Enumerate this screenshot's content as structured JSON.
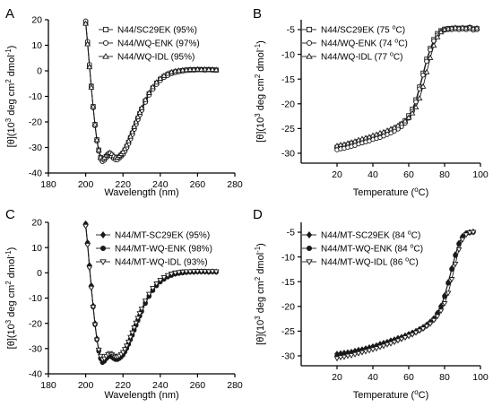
{
  "figure": {
    "colors": {
      "axis": "#000000",
      "marker": "#1a1a1a"
    }
  },
  "chart_data": [
    {
      "panel": "A",
      "type": "scatter",
      "xlabel": "Wavelength (nm)",
      "ylabel_parts": [
        "[θ](10",
        "3",
        " deg cm",
        "2",
        " dmol",
        "-1",
        ")"
      ],
      "xlim": [
        180,
        280
      ],
      "ylim": [
        -40,
        20
      ],
      "xticks": [
        180,
        200,
        220,
        240,
        260,
        280
      ],
      "yticks": [
        -40,
        -30,
        -20,
        -10,
        0,
        10,
        20
      ],
      "grid": false,
      "legend": {
        "position": "top-right"
      },
      "x": [
        200,
        201,
        202,
        203,
        204,
        205,
        206,
        207,
        208,
        209,
        210,
        211,
        212,
        213,
        214,
        215,
        216,
        217,
        218,
        219,
        220,
        221,
        222,
        223,
        224,
        225,
        226,
        227,
        228,
        229,
        230,
        232,
        234,
        236,
        238,
        240,
        242,
        244,
        246,
        248,
        250,
        252,
        254,
        256,
        258,
        260,
        262,
        264,
        266,
        268,
        270
      ],
      "series": [
        {
          "name": "N44/SC29EK (95%)",
          "marker": "square-open",
          "values": [
            19,
            11,
            2,
            -6,
            -14,
            -21,
            -27,
            -31,
            -34,
            -35,
            -34.5,
            -33.5,
            -32.8,
            -32.5,
            -33,
            -33.8,
            -34.3,
            -34.3,
            -33.7,
            -33,
            -32.2,
            -31,
            -29.6,
            -28,
            -26.2,
            -24.4,
            -22.4,
            -20.5,
            -18.6,
            -16.8,
            -15,
            -11.8,
            -9,
            -6.7,
            -4.8,
            -3.3,
            -2.2,
            -1.4,
            -0.8,
            -0.4,
            -0.1,
            0.1,
            0.3,
            0.4,
            0.4,
            0.5,
            0.5,
            0.4,
            0.5,
            0.4,
            0.3
          ]
        },
        {
          "name": "N44/WQ-ENK (97%)",
          "marker": "circle-open",
          "values": [
            19.5,
            11.5,
            2.5,
            -6,
            -14.5,
            -21.5,
            -27.5,
            -31.5,
            -34.5,
            -35.5,
            -35,
            -34,
            -33.3,
            -33,
            -33.5,
            -34.3,
            -34.8,
            -34.8,
            -34.2,
            -33.5,
            -32.7,
            -31.5,
            -30.1,
            -28.5,
            -26.7,
            -24.9,
            -22.9,
            -21,
            -19.1,
            -17.3,
            -15.5,
            -12.3,
            -9.5,
            -7.2,
            -5.3,
            -3.8,
            -2.6,
            -1.8,
            -1.1,
            -0.7,
            -0.4,
            -0.1,
            0.1,
            0.2,
            0.3,
            0.4,
            0.4,
            0.3,
            0.4,
            0.3,
            0.2
          ]
        },
        {
          "name": "N44/WQ-IDL (95%)",
          "marker": "triangle-open",
          "values": [
            18.5,
            10.5,
            1.5,
            -6.5,
            -14,
            -21,
            -27,
            -31,
            -33.8,
            -34.5,
            -34,
            -33,
            -32.3,
            -32,
            -32.5,
            -33.3,
            -33.8,
            -33.8,
            -33.2,
            -32.5,
            -31.7,
            -30.5,
            -29.1,
            -27.5,
            -25.7,
            -23.9,
            -21.9,
            -20,
            -18.1,
            -16.3,
            -14.5,
            -11.3,
            -8.6,
            -6.3,
            -4.5,
            -3,
            -1.9,
            -1.1,
            -0.5,
            -0.1,
            0.1,
            0.3,
            0.4,
            0.5,
            0.5,
            0.6,
            0.5,
            0.6,
            0.5,
            0.5,
            0.4
          ]
        }
      ]
    },
    {
      "panel": "B",
      "type": "scatter",
      "xlabel_parts": [
        "Temperature (",
        "o",
        "C)"
      ],
      "ylabel_parts": [
        "[θ](10",
        "3",
        " deg cm",
        "2",
        " dmol",
        "-1",
        ")"
      ],
      "xlim": [
        0,
        100
      ],
      "ylim": [
        -32,
        -3
      ],
      "xticks": [
        20,
        40,
        60,
        80,
        100
      ],
      "yticks": [
        -30,
        -25,
        -20,
        -15,
        -10,
        -5
      ],
      "grid": false,
      "legend": {
        "position": "top-left"
      },
      "x": [
        20,
        22,
        24,
        26,
        28,
        30,
        32,
        34,
        36,
        38,
        40,
        42,
        44,
        46,
        48,
        50,
        52,
        54,
        56,
        58,
        60,
        62,
        64,
        66,
        68,
        70,
        72,
        74,
        76,
        78,
        80,
        82,
        84,
        86,
        88,
        90,
        92,
        94,
        96,
        98
      ],
      "series": [
        {
          "name": "N44/SC29EK (75 ºC)",
          "name_parts": [
            "N44/SC29EK (75 ",
            "o",
            "C)"
          ],
          "marker": "square-open",
          "values": [
            -28.8,
            -28.6,
            -28.5,
            -28.3,
            -28.0,
            -27.9,
            -27.6,
            -27.5,
            -27.3,
            -27.0,
            -26.8,
            -26.6,
            -26.3,
            -26.1,
            -25.8,
            -25.5,
            -25.1,
            -24.7,
            -24.1,
            -23.4,
            -22.4,
            -21.1,
            -19.2,
            -16.6,
            -13.8,
            -11.0,
            -8.8,
            -7.0,
            -5.8,
            -5.2,
            -4.9,
            -4.8,
            -4.8,
            -4.7,
            -4.8,
            -4.7,
            -4.8,
            -4.6,
            -4.9,
            -4.8
          ]
        },
        {
          "name": "N44/WQ-ENK (74 ºC)",
          "name_parts": [
            "N44/WQ-ENK (74 ",
            "o",
            "C)"
          ],
          "marker": "circle-open",
          "values": [
            -29.3,
            -29.1,
            -29.0,
            -28.8,
            -28.6,
            -28.4,
            -28.1,
            -27.9,
            -27.7,
            -27.5,
            -27.2,
            -27.0,
            -26.8,
            -26.5,
            -26.2,
            -25.9,
            -25.5,
            -25.1,
            -24.6,
            -23.9,
            -22.9,
            -21.5,
            -19.6,
            -17.0,
            -14.2,
            -11.4,
            -9.1,
            -7.3,
            -6.1,
            -5.4,
            -5.1,
            -5.0,
            -5.0,
            -4.9,
            -5.0,
            -4.9,
            -5.0,
            -4.8,
            -5.1,
            -5.0
          ]
        },
        {
          "name": "N44/WQ-IDL (77 ºC)",
          "name_parts": [
            "N44/WQ-IDL (77 ",
            "o",
            "C)"
          ],
          "marker": "triangle-open",
          "values": [
            -28.5,
            -28.3,
            -28.2,
            -28.0,
            -27.8,
            -27.6,
            -27.3,
            -27.1,
            -26.9,
            -26.7,
            -26.4,
            -26.2,
            -25.9,
            -25.7,
            -25.4,
            -25.1,
            -24.8,
            -24.4,
            -24.0,
            -23.5,
            -22.8,
            -21.9,
            -20.7,
            -18.9,
            -16.5,
            -13.6,
            -10.7,
            -8.2,
            -6.5,
            -5.5,
            -5.0,
            -4.8,
            -4.7,
            -4.6,
            -4.7,
            -4.6,
            -4.7,
            -4.5,
            -4.8,
            -4.7
          ]
        }
      ]
    },
    {
      "panel": "C",
      "type": "scatter",
      "xlabel": "Wavelength (nm)",
      "ylabel_parts": [
        "[θ](10",
        "3",
        " deg cm",
        "2",
        " dmol",
        "-1",
        ")"
      ],
      "xlim": [
        180,
        280
      ],
      "ylim": [
        -40,
        20
      ],
      "xticks": [
        180,
        200,
        220,
        240,
        260,
        280
      ],
      "yticks": [
        -40,
        -30,
        -20,
        -10,
        0,
        10,
        20
      ],
      "grid": false,
      "legend": {
        "position": "top-right"
      },
      "x": [
        200,
        201,
        202,
        203,
        204,
        205,
        206,
        207,
        208,
        209,
        210,
        211,
        212,
        213,
        214,
        215,
        216,
        217,
        218,
        219,
        220,
        221,
        222,
        223,
        224,
        225,
        226,
        227,
        228,
        229,
        230,
        232,
        234,
        236,
        238,
        240,
        242,
        244,
        246,
        248,
        250,
        252,
        254,
        256,
        258,
        260,
        262,
        264,
        266,
        268,
        270
      ],
      "series": [
        {
          "name": "N44/MT-SC29EK (95%)",
          "marker": "diamond-filled",
          "values": [
            19.5,
            12,
            3,
            -5,
            -13,
            -20,
            -26,
            -30.5,
            -33.5,
            -35,
            -34.5,
            -33.5,
            -32.8,
            -32.4,
            -32.8,
            -33.4,
            -33.8,
            -33.8,
            -33.4,
            -32.8,
            -32,
            -30.8,
            -29.4,
            -27.8,
            -26,
            -24.2,
            -22.2,
            -20.3,
            -18.4,
            -16.6,
            -14.8,
            -11.6,
            -8.9,
            -6.6,
            -4.8,
            -3.3,
            -2.2,
            -1.4,
            -0.8,
            -0.3,
            0,
            0.2,
            0.3,
            0.4,
            0.4,
            0.5,
            0.5,
            0.5,
            0.4,
            0.5,
            0.4
          ]
        },
        {
          "name": "N44/MT-WQ-ENK (98%)",
          "marker": "circle-filled",
          "values": [
            19,
            11.5,
            2.5,
            -5.5,
            -13.5,
            -20.5,
            -26.5,
            -31,
            -34,
            -35.5,
            -35,
            -34,
            -33.3,
            -32.9,
            -33.3,
            -33.9,
            -34.3,
            -34.3,
            -33.9,
            -33.3,
            -32.5,
            -31.3,
            -29.9,
            -28.3,
            -26.5,
            -24.7,
            -22.7,
            -20.8,
            -18.9,
            -17.1,
            -15.3,
            -12.1,
            -9.3,
            -7,
            -5.1,
            -3.6,
            -2.5,
            -1.6,
            -1,
            -0.5,
            -0.2,
            0,
            0.2,
            0.3,
            0.3,
            0.4,
            0.4,
            0.4,
            0.3,
            0.4,
            0.3
          ]
        },
        {
          "name": "N44/MT-WQ-IDL (93%)",
          "marker": "triangle-down-open",
          "values": [
            18.5,
            11,
            2,
            -6,
            -13.5,
            -20.5,
            -26.5,
            -30.5,
            -33,
            -34.3,
            -34,
            -33,
            -32.3,
            -31.9,
            -32.3,
            -32.9,
            -33.3,
            -33.3,
            -32.9,
            -32.3,
            -31.5,
            -30.3,
            -28.9,
            -27.3,
            -25.5,
            -23.7,
            -21.7,
            -19.8,
            -17.9,
            -16.1,
            -14.3,
            -11.1,
            -8.4,
            -6.1,
            -4.3,
            -2.9,
            -1.8,
            -1,
            -0.4,
            0,
            0.2,
            0.4,
            0.5,
            0.5,
            0.6,
            0.6,
            0.6,
            0.6,
            0.5,
            0.6,
            0.5
          ]
        }
      ]
    },
    {
      "panel": "D",
      "type": "scatter",
      "xlabel_parts": [
        "Temperature (",
        "o",
        "C)"
      ],
      "ylabel_parts": [
        "[θ](10",
        "3",
        " deg cm",
        "2",
        " dmol",
        "-1",
        ")"
      ],
      "xlim": [
        0,
        100
      ],
      "ylim": [
        -32,
        -3
      ],
      "xticks": [
        20,
        40,
        60,
        80,
        100
      ],
      "yticks": [
        -30,
        -25,
        -20,
        -15,
        -10,
        -5
      ],
      "grid": false,
      "legend": {
        "position": "top-left"
      },
      "x": [
        20,
        22,
        24,
        26,
        28,
        30,
        32,
        34,
        36,
        38,
        40,
        42,
        44,
        46,
        48,
        50,
        52,
        54,
        56,
        58,
        60,
        62,
        64,
        66,
        68,
        70,
        72,
        74,
        76,
        78,
        80,
        82,
        84,
        86,
        88,
        90,
        92,
        94,
        96
      ],
      "series": [
        {
          "name": "N44/MT-SC29EK (84 ºC)",
          "name_parts": [
            "N44/MT-SC29EK (84 ",
            "o",
            "C)"
          ],
          "marker": "diamond-filled",
          "values": [
            -29.6,
            -29.5,
            -29.4,
            -29.3,
            -29.2,
            -29.0,
            -28.8,
            -28.7,
            -28.5,
            -28.3,
            -28.1,
            -27.9,
            -27.6,
            -27.4,
            -27.2,
            -26.9,
            -26.7,
            -26.4,
            -26.2,
            -25.9,
            -25.6,
            -25.3,
            -25.0,
            -24.6,
            -24.2,
            -23.7,
            -23.1,
            -22.4,
            -21.3,
            -19.9,
            -17.8,
            -15.1,
            -12.3,
            -9.5,
            -7.2,
            -5.8,
            -5.2,
            -5.0,
            -4.9
          ]
        },
        {
          "name": "N44/MT-WQ-ENK (84 ºC)",
          "name_parts": [
            "N44/MT-WQ-ENK (84 ",
            "o",
            "C)"
          ],
          "marker": "circle-filled",
          "values": [
            -30.0,
            -29.9,
            -29.8,
            -29.7,
            -29.5,
            -29.4,
            -29.2,
            -29.0,
            -28.8,
            -28.6,
            -28.4,
            -28.2,
            -28.0,
            -27.7,
            -27.5,
            -27.2,
            -27.0,
            -26.7,
            -26.4,
            -26.1,
            -25.8,
            -25.5,
            -25.2,
            -24.8,
            -24.4,
            -23.9,
            -23.3,
            -22.6,
            -21.5,
            -20.1,
            -18.0,
            -15.3,
            -12.5,
            -9.7,
            -7.4,
            -6.0,
            -5.3,
            -5.1,
            -5.0
          ]
        },
        {
          "name": "N44/MT-WQ-IDL (86 ºC)",
          "name_parts": [
            "N44/MT-WQ-IDL (86 ",
            "o",
            "C)"
          ],
          "marker": "triangle-down-open",
          "values": [
            -30.5,
            -30.3,
            -30.2,
            -30.0,
            -29.9,
            -29.7,
            -29.5,
            -29.3,
            -29.1,
            -28.9,
            -28.7,
            -28.5,
            -28.2,
            -28.0,
            -27.7,
            -27.5,
            -27.2,
            -26.9,
            -26.6,
            -26.3,
            -26.0,
            -25.7,
            -25.3,
            -24.9,
            -24.5,
            -24.0,
            -23.5,
            -22.8,
            -22.0,
            -20.9,
            -19.4,
            -17.3,
            -14.5,
            -11.4,
            -8.5,
            -6.5,
            -5.5,
            -5.1,
            -5.0
          ]
        }
      ]
    }
  ]
}
